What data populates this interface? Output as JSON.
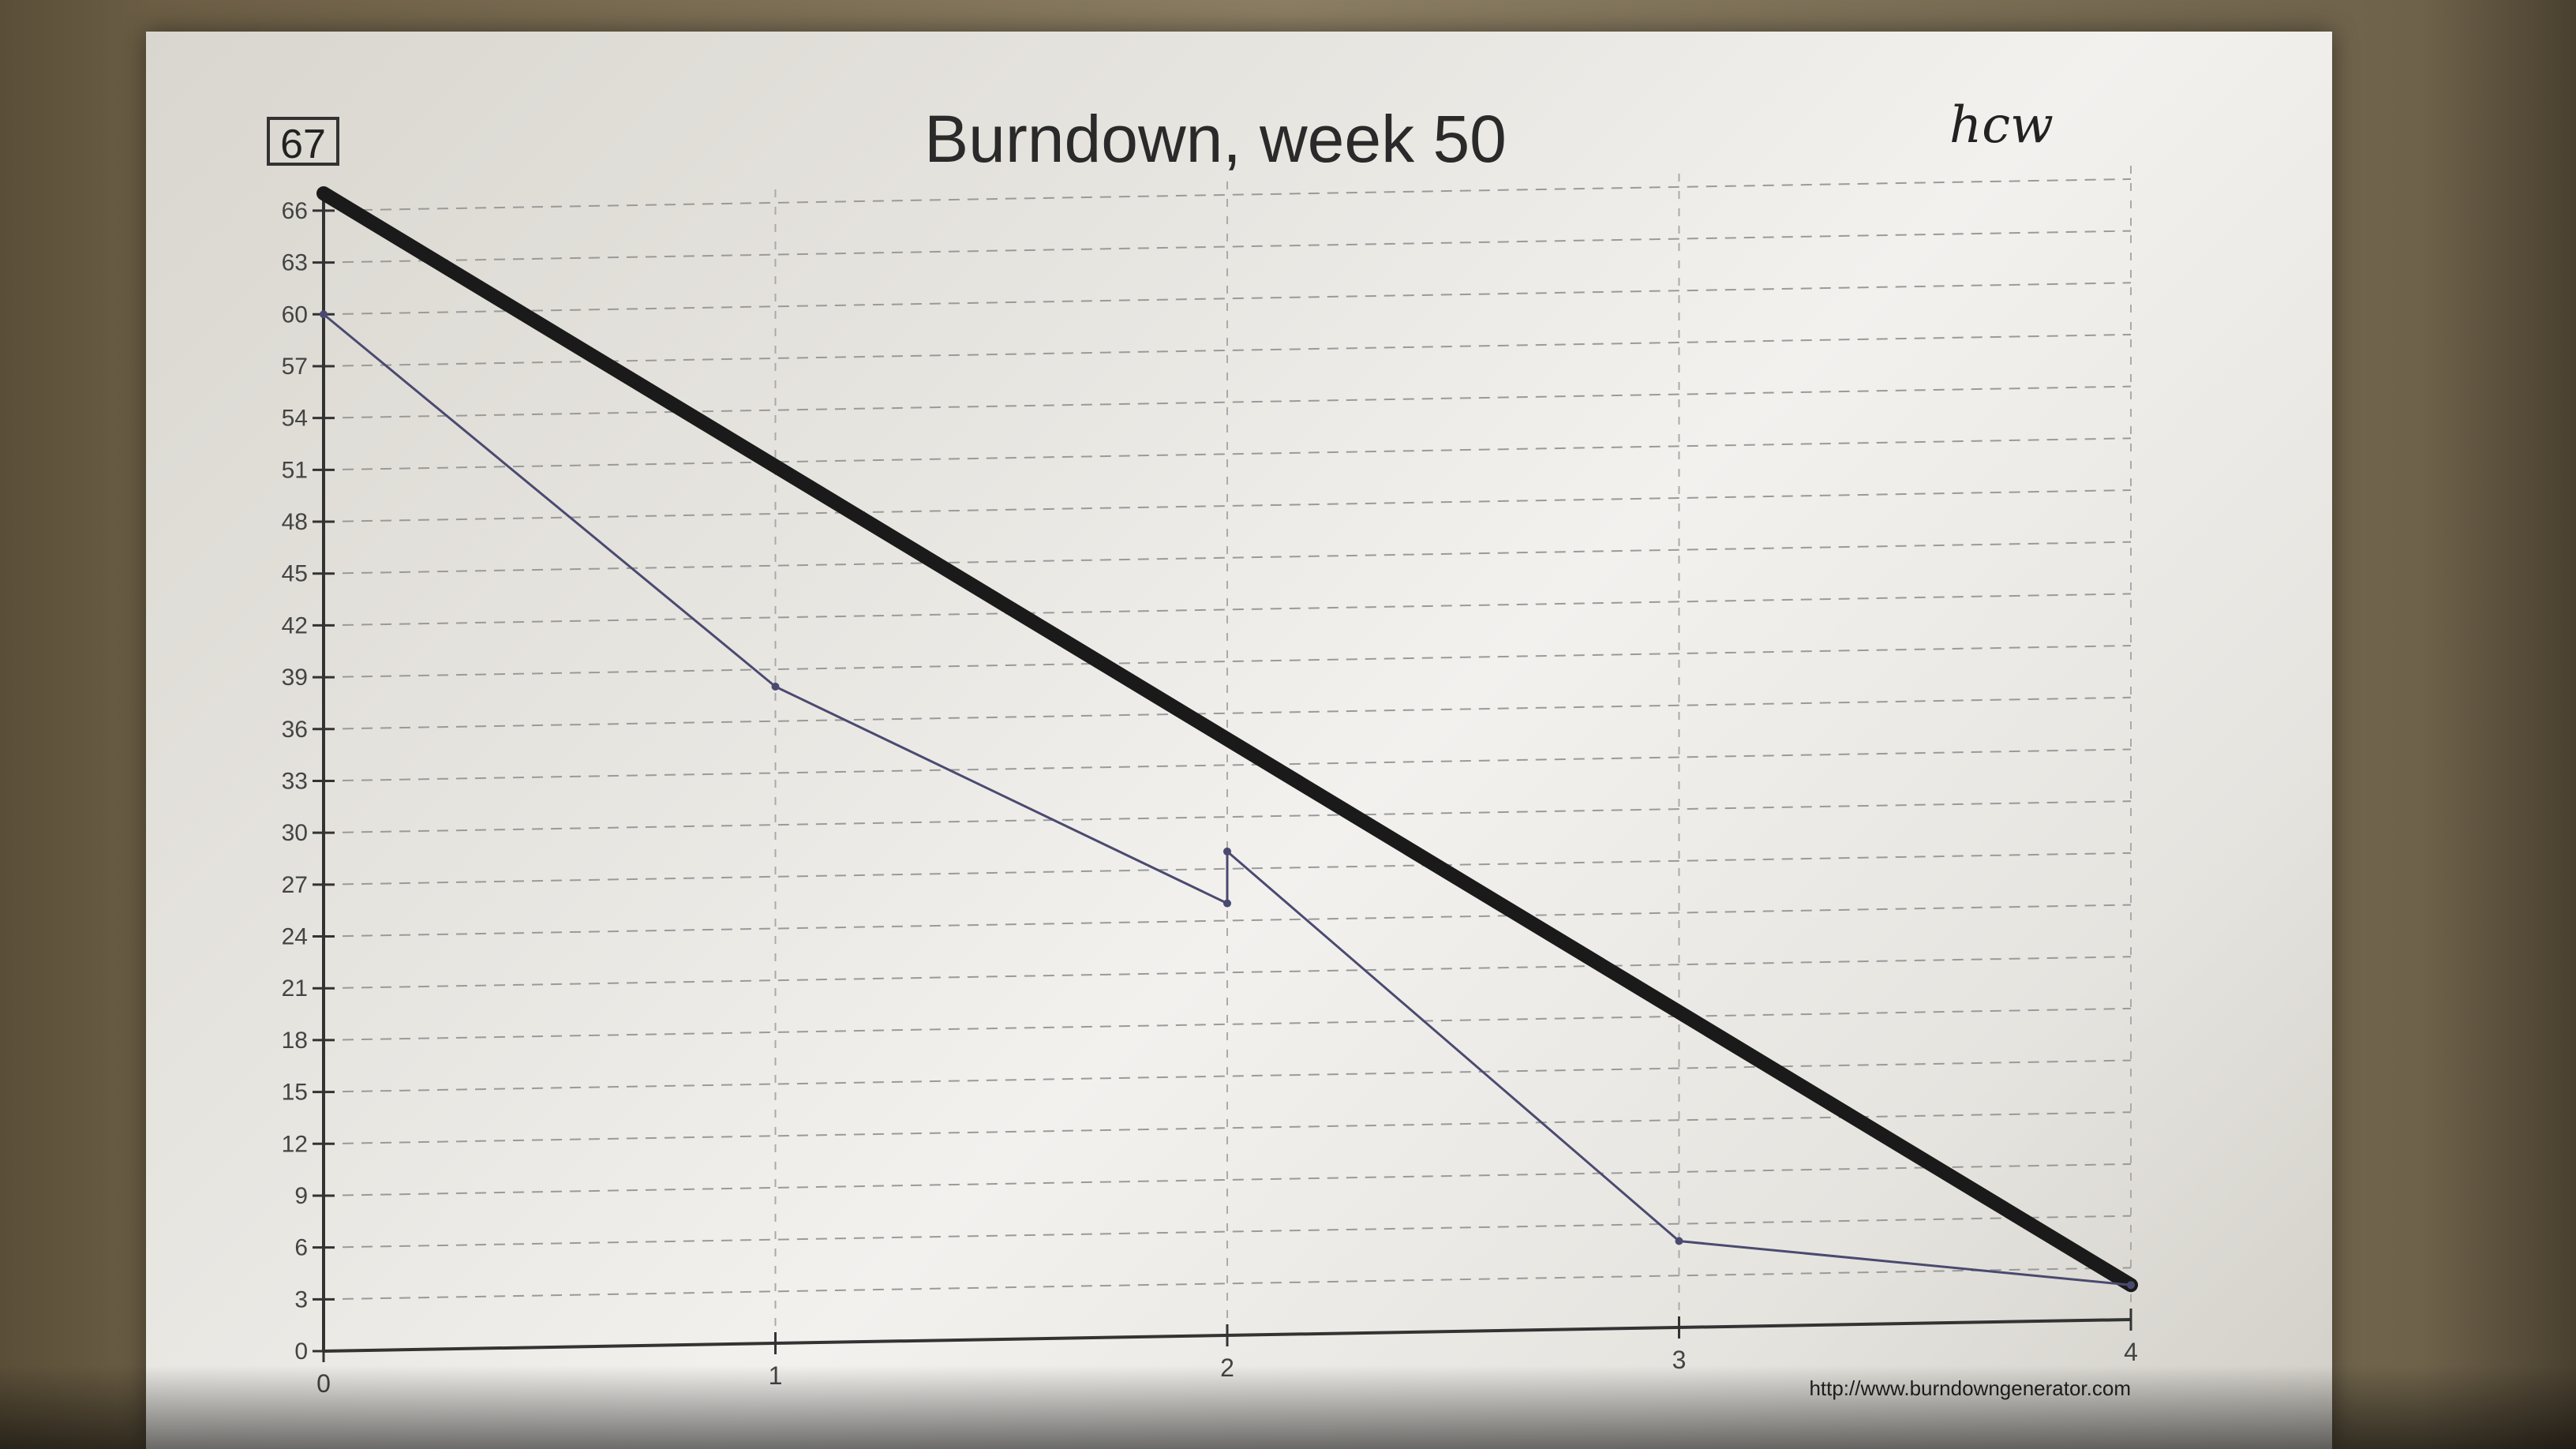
{
  "badge": "67",
  "signature": "hcw",
  "source_url": "http://www.burndowngenerator.com",
  "chart_data": {
    "type": "line",
    "title": "Burndown, week 50",
    "xlabel": "",
    "ylabel": "",
    "x_ticks": [
      0,
      1,
      2,
      3,
      4
    ],
    "y_ticks": [
      0,
      3,
      6,
      9,
      12,
      15,
      18,
      21,
      24,
      27,
      30,
      33,
      36,
      39,
      42,
      45,
      48,
      51,
      54,
      57,
      60,
      63,
      66
    ],
    "xlim": [
      0,
      4
    ],
    "ylim": [
      0,
      67
    ],
    "grid": true,
    "series": [
      {
        "id": "ideal",
        "color": "#1a1a1a",
        "points": [
          [
            0,
            67
          ],
          [
            4,
            2
          ]
        ]
      },
      {
        "id": "actual",
        "color": "#4a4a70",
        "points": [
          [
            0,
            60
          ],
          [
            1,
            38
          ],
          [
            2,
            25
          ],
          [
            2,
            28
          ],
          [
            3,
            5
          ],
          [
            4,
            2
          ]
        ]
      }
    ]
  }
}
